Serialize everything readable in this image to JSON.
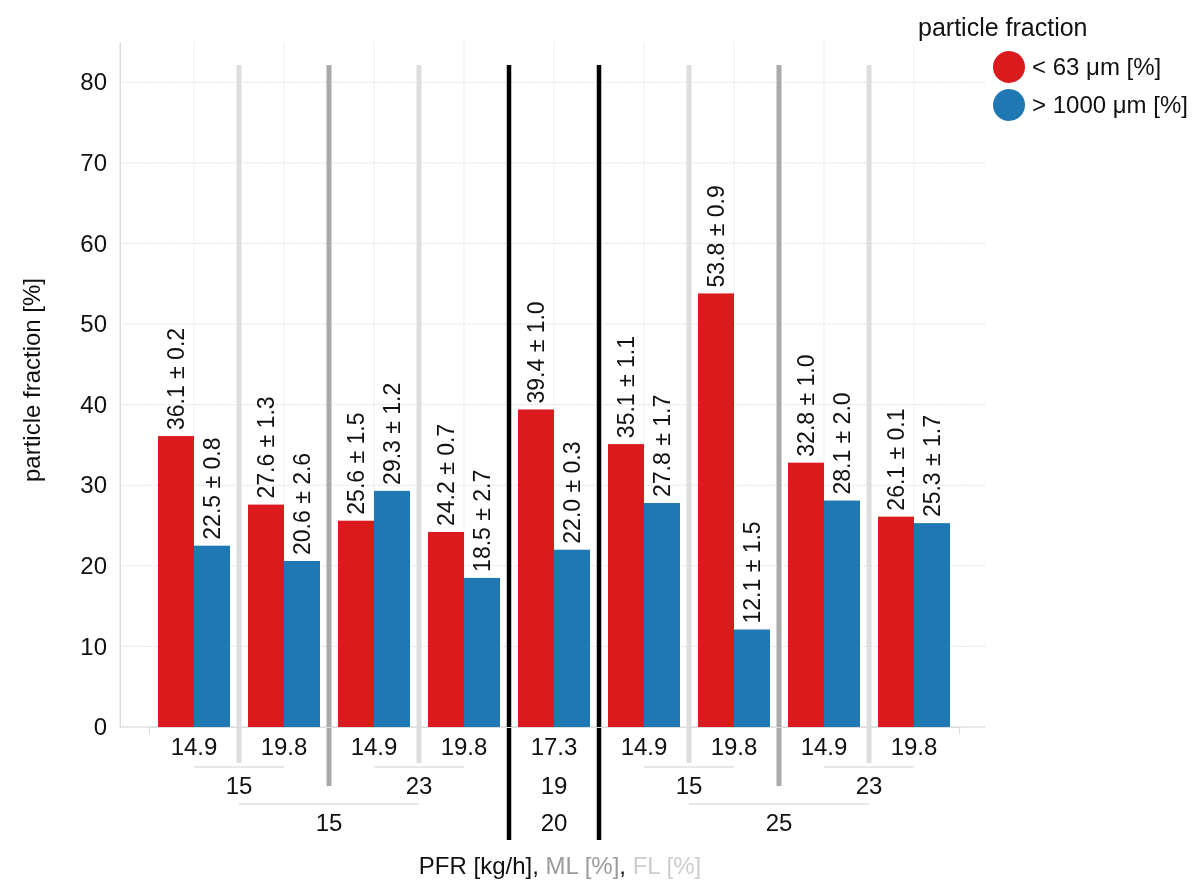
{
  "chart_data": {
    "type": "bar",
    "categories": [
      "14.9",
      "19.8",
      "14.9",
      "19.8",
      "17.3",
      "14.9",
      "19.8",
      "14.9",
      "19.8"
    ],
    "series": [
      {
        "name": "< 63 μm [%]",
        "color": "#db1a1e",
        "values": [
          36.1,
          27.6,
          25.6,
          24.2,
          39.4,
          35.1,
          53.8,
          32.8,
          26.1
        ],
        "value_labels": [
          "36.1 ± 0.2",
          "27.6 ± 1.3",
          "25.6 ± 1.5",
          "24.2 ± 0.7",
          "39.4 ± 1.0",
          "35.1 ± 1.1",
          "53.8 ± 0.9",
          "32.8 ± 1.0",
          "26.1 ± 0.1"
        ]
      },
      {
        "name": "> 1000 μm [%]",
        "color": "#1f78b4",
        "values": [
          22.5,
          20.6,
          29.3,
          18.5,
          22.0,
          27.8,
          12.1,
          28.1,
          25.3
        ],
        "value_labels": [
          "22.5 ± 0.8",
          "20.6 ± 2.6",
          "29.3 ± 1.2",
          "18.5 ± 2.7",
          "22.0 ± 0.3",
          "27.8 ± 1.7",
          "12.1 ± 1.5",
          "28.1 ± 2.0",
          "25.3 ± 1.7"
        ]
      }
    ],
    "ylabel": "particle fraction [%]",
    "xlabel": "PFR [kg/h], ML [%], FL [%]",
    "legend_title": "particle fraction",
    "ylim": [
      0,
      85
    ],
    "yticks": [
      0,
      10,
      20,
      30,
      40,
      50,
      60,
      70,
      80
    ],
    "grid": true,
    "legend": "top right",
    "annotations": [
      "15",
      "23",
      "19",
      "15",
      "23",
      "15",
      "20",
      "25"
    ]
  }
}
